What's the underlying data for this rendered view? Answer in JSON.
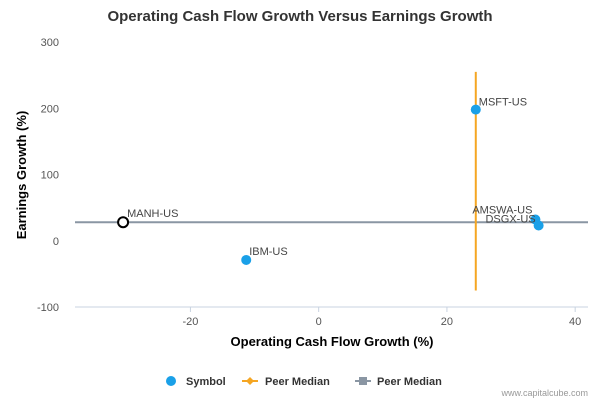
{
  "chart_data": {
    "type": "scatter",
    "title": "Operating Cash Flow Growth Versus Earnings Growth",
    "xlabel": "Operating Cash Flow Growth (%)",
    "ylabel": "Earnings Growth (%)",
    "xlim": [
      -38,
      42
    ],
    "ylim": [
      -100,
      300
    ],
    "xticks": [
      -20,
      0,
      20,
      40
    ],
    "yticks": [
      -100,
      0,
      100,
      200,
      300
    ],
    "grid": false,
    "legend_position": "bottom",
    "points": [
      {
        "label": "MSFT-US",
        "x": 24.5,
        "y": 198,
        "style": "symbol"
      },
      {
        "label": "AMSWA-US",
        "x": 33.8,
        "y": 32,
        "style": "symbol"
      },
      {
        "label": "DSGX-US",
        "x": 34.3,
        "y": 23,
        "style": "symbol"
      },
      {
        "label": "IBM-US",
        "x": -11.3,
        "y": -29,
        "style": "symbol"
      },
      {
        "label": "MANH-US",
        "x": -30.5,
        "y": 28,
        "style": "highlight"
      }
    ],
    "peer_median_x": 24.5,
    "peer_median_y": 28,
    "legend": [
      {
        "name": "Symbol",
        "marker": "circle",
        "color": "#1aa0e8"
      },
      {
        "name": "Peer Median",
        "marker": "diamond",
        "color": "#f5a623"
      },
      {
        "name": "Peer Median",
        "marker": "square",
        "color": "#8a96a3"
      }
    ],
    "colors": {
      "symbol": "#1aa0e8",
      "peer_median_vertical": "#f5a623",
      "peer_median_horizontal": "#8a96a3",
      "highlight_stroke": "#000000"
    }
  },
  "credit": "www.capitalcube.com"
}
